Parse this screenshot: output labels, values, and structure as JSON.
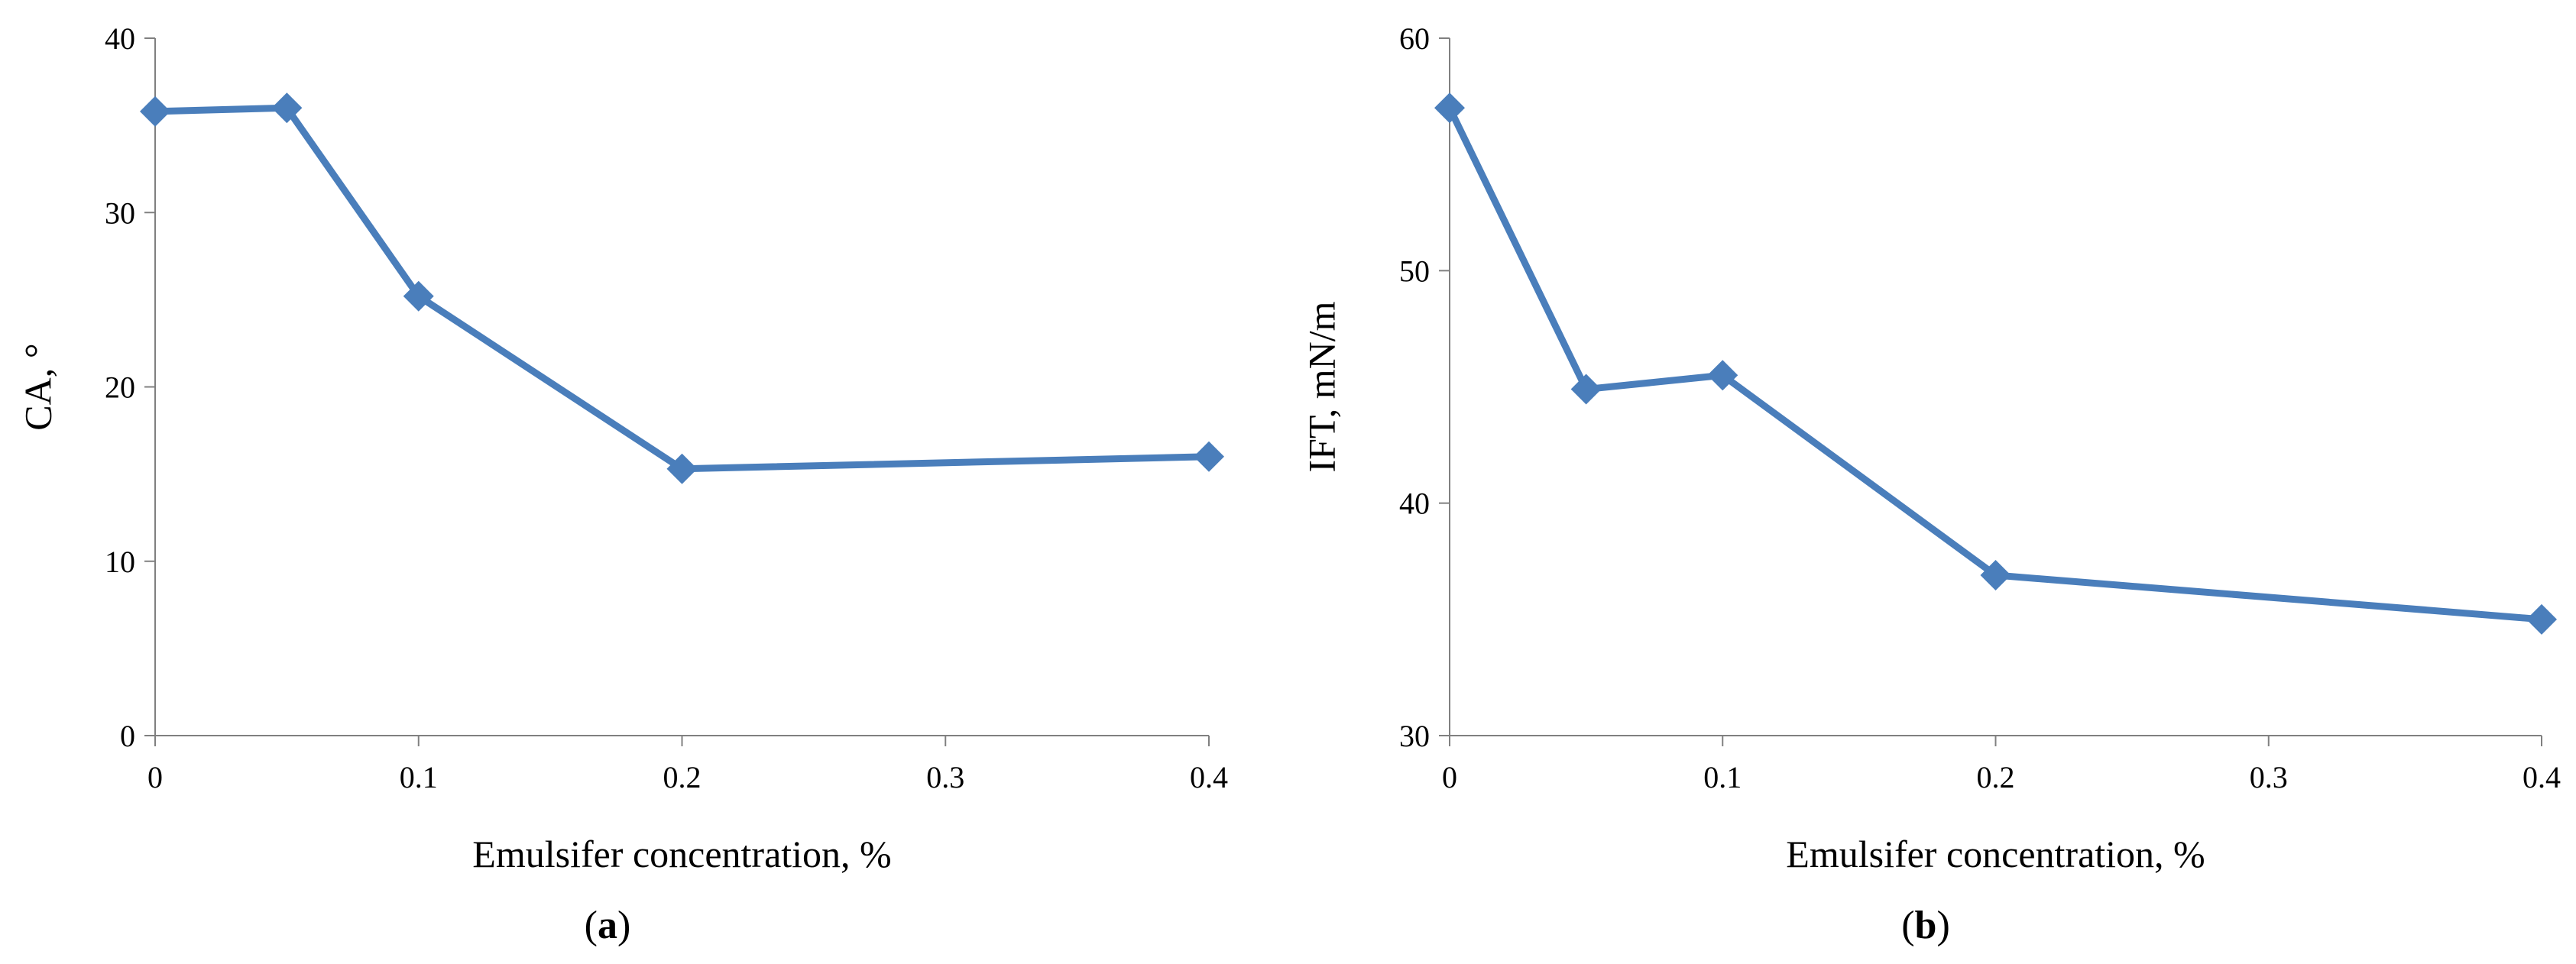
{
  "chart_data": [
    {
      "type": "line",
      "panel_label": "a",
      "xlabel": "Emulsifer concentration, %",
      "ylabel": "CA, °",
      "xlim": [
        0,
        0.4
      ],
      "ylim": [
        0,
        40
      ],
      "xticks": [
        "0",
        "0.1",
        "0.2",
        "0.3",
        "0.4"
      ],
      "yticks": [
        "0",
        "10",
        "20",
        "30",
        "40"
      ],
      "grid": false,
      "legend": "none",
      "series": [
        {
          "x": [
            0,
            0.05,
            0.1,
            0.2,
            0.4
          ],
          "y": [
            35.8,
            36.0,
            25.2,
            15.3,
            16.0
          ],
          "color": "#4a7ebb",
          "marker": "diamond"
        }
      ]
    },
    {
      "type": "line",
      "panel_label": "b",
      "xlabel": "Emulsifer concentration, %",
      "ylabel": "IFT, mN/m",
      "xlim": [
        0,
        0.4
      ],
      "ylim": [
        30,
        60
      ],
      "xticks": [
        "0",
        "0.1",
        "0.2",
        "0.3",
        "0.4"
      ],
      "yticks": [
        "30",
        "40",
        "50",
        "60"
      ],
      "grid": false,
      "legend": "none",
      "series": [
        {
          "x": [
            0,
            0.05,
            0.1,
            0.2,
            0.4
          ],
          "y": [
            57.0,
            44.9,
            45.5,
            36.9,
            35.0
          ],
          "color": "#4a7ebb",
          "marker": "diamond"
        }
      ]
    }
  ]
}
